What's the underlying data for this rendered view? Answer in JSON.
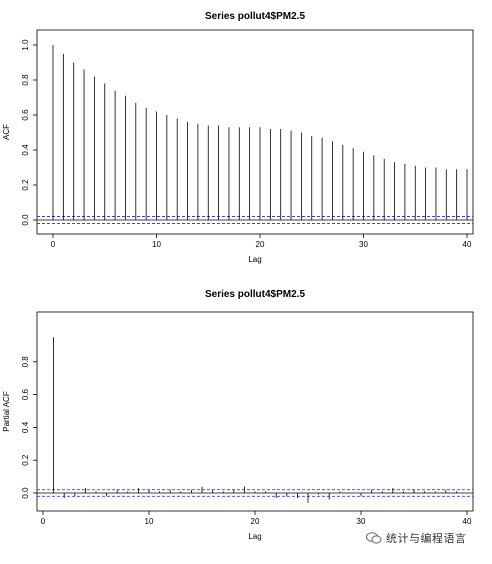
{
  "watermark": {
    "text": "统计与编程语言",
    "icon": "wechat-icon"
  },
  "chart_data": [
    {
      "type": "bar",
      "title": "Series  pollut4$PM2.5",
      "xlabel": "Lag",
      "ylabel": "ACF",
      "xlim": [
        0,
        40
      ],
      "ylim": [
        0,
        1.0
      ],
      "xticks": [
        0,
        10,
        20,
        30,
        40
      ],
      "yticks": [
        0.0,
        0.2,
        0.4,
        0.6,
        0.8,
        1.0
      ],
      "ci": 0.02,
      "grid": false,
      "x": [
        0,
        1,
        2,
        3,
        4,
        5,
        6,
        7,
        8,
        9,
        10,
        11,
        12,
        13,
        14,
        15,
        16,
        17,
        18,
        19,
        20,
        21,
        22,
        23,
        24,
        25,
        26,
        27,
        28,
        29,
        30,
        31,
        32,
        33,
        34,
        35,
        36,
        37,
        38,
        39,
        40
      ],
      "values": [
        1.0,
        0.95,
        0.9,
        0.86,
        0.82,
        0.78,
        0.74,
        0.71,
        0.67,
        0.64,
        0.62,
        0.6,
        0.58,
        0.56,
        0.55,
        0.54,
        0.54,
        0.53,
        0.53,
        0.53,
        0.53,
        0.52,
        0.52,
        0.51,
        0.5,
        0.48,
        0.47,
        0.45,
        0.43,
        0.41,
        0.39,
        0.37,
        0.35,
        0.33,
        0.32,
        0.31,
        0.3,
        0.3,
        0.29,
        0.29,
        0.29
      ]
    },
    {
      "type": "bar",
      "title": "Series  pollut4$PM2.5",
      "xlabel": "Lag",
      "ylabel": "Partial ACF",
      "xlim": [
        0,
        40
      ],
      "ylim": [
        -0.04,
        1.0
      ],
      "xticks": [
        0,
        10,
        20,
        30,
        40
      ],
      "yticks": [
        0.0,
        0.2,
        0.4,
        0.6,
        0.8
      ],
      "ci": 0.02,
      "grid": false,
      "x": [
        1,
        2,
        3,
        4,
        5,
        6,
        7,
        8,
        9,
        10,
        11,
        12,
        13,
        14,
        15,
        16,
        17,
        18,
        19,
        20,
        21,
        22,
        23,
        24,
        25,
        26,
        27,
        28,
        29,
        30,
        31,
        32,
        33,
        34,
        35,
        36,
        37,
        38,
        39,
        40
      ],
      "values": [
        0.95,
        -0.03,
        -0.02,
        0.03,
        0.01,
        -0.02,
        0.02,
        0.01,
        0.03,
        0.02,
        0.01,
        0.02,
        0.01,
        0.02,
        0.04,
        0.02,
        0.01,
        0.02,
        0.04,
        0.01,
        0.01,
        -0.03,
        -0.02,
        -0.03,
        -0.06,
        -0.01,
        -0.04,
        0.01,
        0.0,
        -0.02,
        0.02,
        0.01,
        0.03,
        0.01,
        0.02,
        0.01,
        0.01,
        0.02,
        0.01,
        0.0
      ]
    }
  ]
}
